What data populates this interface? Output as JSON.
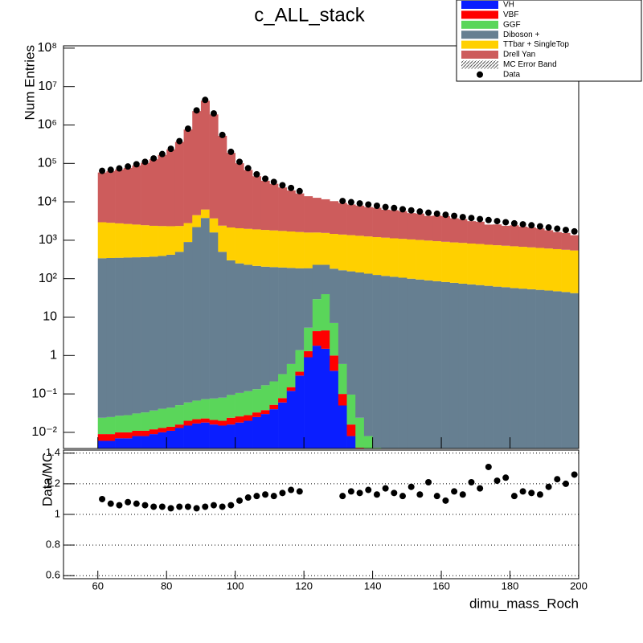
{
  "chart_data": {
    "type": "stacked-histogram",
    "title": "c_ALL_stack",
    "ylabel": "Num Entries",
    "xlabel": "dimu_mass_Roch",
    "log_y": true,
    "xlim": [
      50,
      200
    ],
    "xticks": [
      60,
      80,
      100,
      120,
      140,
      160,
      180,
      200
    ],
    "ylim": [
      0.0038,
      115000000
    ],
    "yticks": [
      {
        "value": 0.01,
        "label": "10⁻²"
      },
      {
        "value": 0.1,
        "label": "10⁻¹"
      },
      1,
      10,
      {
        "value": 100,
        "label": "10²"
      },
      {
        "value": 1000,
        "label": "10³"
      },
      {
        "value": 10000,
        "label": "10⁴"
      },
      {
        "value": 100000,
        "label": "10⁵"
      },
      {
        "value": 1000000,
        "label": "10⁶"
      },
      {
        "value": 10000000,
        "label": "10⁷"
      },
      {
        "value": 100000000,
        "label": "10⁸"
      }
    ],
    "legend": "top-right",
    "bins": [
      60,
      62.5,
      65,
      67.5,
      70,
      72.5,
      75,
      77.5,
      80,
      82.5,
      85,
      87.5,
      90,
      92.5,
      95,
      97.5,
      100,
      102.5,
      105,
      107.5,
      110,
      112.5,
      115,
      117.5,
      120,
      122.5,
      125,
      127.5,
      130,
      132.5,
      135,
      137.5,
      140,
      142.5,
      145,
      147.5,
      150,
      152.5,
      155,
      157.5,
      160,
      162.5,
      165,
      167.5,
      170,
      172.5,
      175,
      177.5,
      180,
      182.5,
      185,
      187.5,
      190,
      192.5,
      195,
      197.5,
      200
    ],
    "series": [
      {
        "name": "VH",
        "color": "#0a1eff",
        "values": [
          0.006,
          0.006,
          0.007,
          0.007,
          0.008,
          0.008,
          0.009,
          0.01,
          0.011,
          0.013,
          0.015,
          0.017,
          0.018,
          0.016,
          0.015,
          0.016,
          0.018,
          0.02,
          0.025,
          0.03,
          0.04,
          0.06,
          0.12,
          0.3,
          0.9,
          1.8,
          1.5,
          0.4,
          0.05,
          0.008,
          0.002,
          0,
          0,
          0,
          0,
          0,
          0,
          0,
          0,
          0,
          0,
          0,
          0,
          0,
          0,
          0,
          0,
          0,
          0,
          0,
          0,
          0,
          0,
          0,
          0,
          0
        ]
      },
      {
        "name": "VBF",
        "color": "#ff0000",
        "values": [
          0.003,
          0.003,
          0.003,
          0.003,
          0.003,
          0.003,
          0.003,
          0.003,
          0.003,
          0.003,
          0.005,
          0.005,
          0.005,
          0.005,
          0.005,
          0.008,
          0.008,
          0.008,
          0.008,
          0.008,
          0.012,
          0.018,
          0.03,
          0.08,
          0.4,
          2.5,
          3,
          0.6,
          0.05,
          0.008,
          0.002,
          0,
          0,
          0,
          0,
          0,
          0,
          0,
          0,
          0,
          0,
          0,
          0,
          0,
          0,
          0,
          0,
          0,
          0,
          0,
          0,
          0,
          0,
          0,
          0,
          0
        ]
      },
      {
        "name": "GGF",
        "color": "#5ad65a",
        "values": [
          0.015,
          0.016,
          0.017,
          0.018,
          0.02,
          0.022,
          0.025,
          0.028,
          0.03,
          0.035,
          0.04,
          0.045,
          0.05,
          0.055,
          0.06,
          0.07,
          0.08,
          0.09,
          0.1,
          0.13,
          0.16,
          0.25,
          0.45,
          1,
          4,
          25,
          35,
          6,
          0.5,
          0.08,
          0.02,
          0.008,
          0.004,
          0.002,
          0,
          0,
          0,
          0,
          0,
          0,
          0,
          0,
          0,
          0,
          0,
          0,
          0,
          0,
          0,
          0,
          0,
          0,
          0,
          0,
          0,
          0
        ]
      },
      {
        "name": "Diboson +",
        "color": "#667f91",
        "values": [
          340,
          345,
          350,
          355,
          360,
          365,
          375,
          390,
          420,
          500,
          900,
          2200,
          3800,
          1600,
          500,
          300,
          250,
          230,
          215,
          205,
          200,
          195,
          190,
          185,
          182,
          200,
          190,
          175,
          165,
          155,
          145,
          135,
          125,
          118,
          112,
          106,
          100,
          95,
          90,
          86,
          82,
          78,
          74,
          71,
          68,
          65,
          62,
          60,
          57,
          55,
          53,
          51,
          49,
          47,
          45,
          42
        ]
      },
      {
        "name": "TTbar + SingleTop",
        "color": "#ffd000",
        "values": [
          2600,
          2500,
          2400,
          2300,
          2200,
          2100,
          2000,
          1950,
          1900,
          1850,
          1900,
          2300,
          2500,
          2100,
          1900,
          1850,
          1800,
          1750,
          1700,
          1650,
          1600,
          1550,
          1500,
          1450,
          1400,
          1360,
          1320,
          1280,
          1240,
          1200,
          1160,
          1120,
          1080,
          1050,
          1010,
          980,
          950,
          920,
          890,
          860,
          830,
          800,
          780,
          750,
          730,
          700,
          680,
          660,
          640,
          620,
          600,
          580,
          560,
          540,
          520,
          500
        ]
      },
      {
        "name": "Drell Yan",
        "color": "#cd5c5c",
        "values": [
          55000,
          60700,
          67000,
          74000,
          86000,
          101000,
          126000,
          164000,
          228000,
          360000,
          759000,
          2300000,
          4280000,
          1880000,
          521000,
          186500,
          98900,
          65600,
          44500,
          33500,
          27700,
          21900,
          18100,
          14900,
          12400,
          11150,
          10100,
          8950,
          7970,
          7170,
          6680,
          6070,
          5790,
          5070,
          4930,
          4630,
          4040,
          3940,
          3320,
          3430,
          3310,
          2860,
          2690,
          2320,
          2240,
          1790,
          1840,
          1660,
          1760,
          1590,
          1500,
          1400,
          1210,
          1040,
          980,
          810
        ]
      }
    ],
    "error_band": {
      "name": "MC Error Band"
    },
    "data": {
      "name": "Data",
      "color": "#000000",
      "values": [
        64000,
        68000,
        74000,
        83000,
        95000,
        110000,
        135000,
        175000,
        240000,
        380000,
        800000,
        2400000,
        4500000,
        2000000,
        550000,
        200000,
        110000,
        75000,
        52000,
        40000,
        33000,
        27000,
        23000,
        19000,
        null,
        null,
        null,
        null,
        10500,
        9800,
        9100,
        8500,
        7900,
        7300,
        6900,
        6400,
        6000,
        5600,
        5200,
        4900,
        4600,
        4300,
        4000,
        3800,
        3550,
        3350,
        3150,
        2950,
        2750,
        2600,
        2450,
        2300,
        2150,
        2000,
        1850,
        1700
      ]
    },
    "ratio": {
      "ylabel": "Data/MC",
      "ylim": [
        0.58,
        1.42
      ],
      "yticks": [
        0.6,
        0.8,
        1,
        1.2,
        1.4
      ],
      "grid": true,
      "values": [
        1.1,
        1.07,
        1.06,
        1.08,
        1.07,
        1.06,
        1.05,
        1.05,
        1.04,
        1.05,
        1.05,
        1.04,
        1.05,
        1.06,
        1.05,
        1.06,
        1.09,
        1.11,
        1.12,
        1.13,
        1.12,
        1.14,
        1.16,
        1.15,
        null,
        null,
        null,
        null,
        1.12,
        1.15,
        1.14,
        1.16,
        1.13,
        1.17,
        1.14,
        1.12,
        1.18,
        1.13,
        1.21,
        1.12,
        1.09,
        1.15,
        1.13,
        1.21,
        1.17,
        1.31,
        1.22,
        1.24,
        1.12,
        1.15,
        1.14,
        1.13,
        1.18,
        1.23,
        1.2,
        1.26
      ]
    }
  }
}
